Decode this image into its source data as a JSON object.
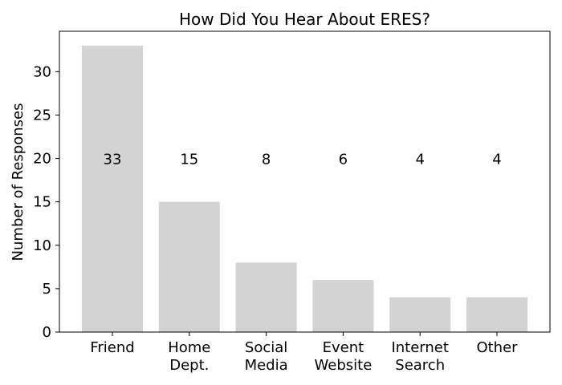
{
  "chart_data": {
    "type": "bar",
    "title": "How Did You Hear About ERES?",
    "xlabel": "",
    "ylabel": "Number of Responses",
    "categories": [
      [
        "Friend"
      ],
      [
        "Home",
        "Dept."
      ],
      [
        "Social",
        "Media"
      ],
      [
        "Event",
        "Website"
      ],
      [
        "Internet",
        "Search"
      ],
      [
        "Other"
      ]
    ],
    "values": [
      33,
      15,
      8,
      6,
      4,
      4
    ],
    "data_labels": [
      "33",
      "15",
      "8",
      "6",
      "4",
      "4"
    ],
    "ylim": [
      0,
      34.65
    ],
    "yticks": [
      0,
      5,
      10,
      15,
      20,
      25,
      30
    ],
    "ytick_labels": [
      "0",
      "5",
      "10",
      "15",
      "20",
      "25",
      "30"
    ],
    "data_label_y": 20,
    "grid": false,
    "bar_color": "#d3d3d3"
  }
}
